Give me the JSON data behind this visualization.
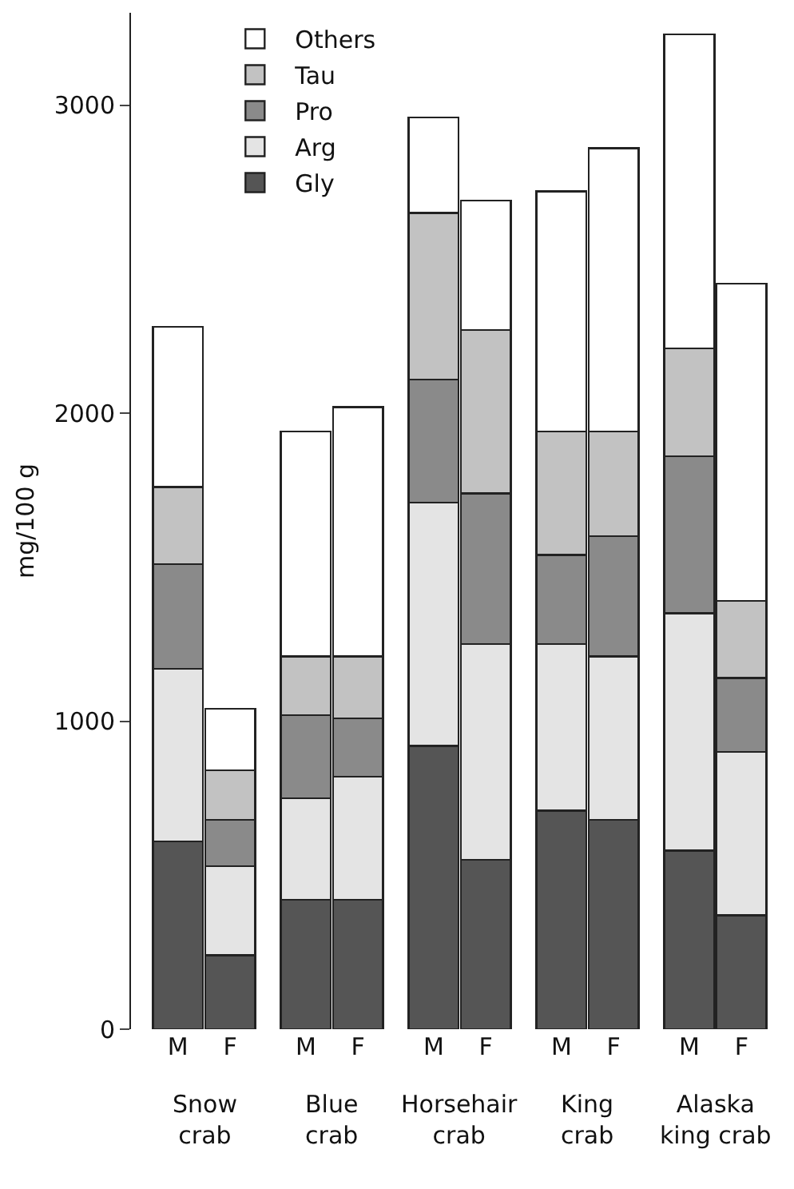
{
  "chart_data": {
    "type": "bar",
    "stacked": true,
    "ylabel": "mg/100 g",
    "categories": [
      "M",
      "F",
      "M",
      "F",
      "M",
      "F",
      "M",
      "F",
      "M",
      "F"
    ],
    "series": [
      {
        "name": "Gly",
        "color": "#555555",
        "values": [
          610,
          240,
          420,
          420,
          920,
          550,
          710,
          680,
          580,
          370
        ]
      },
      {
        "name": "Arg",
        "color": "#e4e4e4",
        "values": [
          560,
          290,
          330,
          400,
          790,
          700,
          540,
          530,
          770,
          530
        ]
      },
      {
        "name": "Pro",
        "color": "#8a8a8a",
        "values": [
          340,
          150,
          270,
          190,
          400,
          490,
          290,
          390,
          510,
          240
        ]
      },
      {
        "name": "Tau",
        "color": "#c2c2c2",
        "values": [
          250,
          160,
          190,
          200,
          540,
          530,
          400,
          340,
          350,
          250
        ]
      },
      {
        "name": "Others",
        "color": "#ffffff",
        "values": [
          520,
          200,
          730,
          810,
          310,
          420,
          780,
          920,
          1020,
          1030
        ]
      }
    ],
    "ylim": [
      0,
      3300
    ],
    "yticks": [
      0,
      1000,
      2000,
      3000
    ],
    "grid": false,
    "legend": "top left",
    "annotations": [
      "Snow\ncrab",
      "Blue\ncrab",
      "Horsehair\ncrab",
      "King\ncrab",
      "Alaska\nking crab"
    ]
  }
}
